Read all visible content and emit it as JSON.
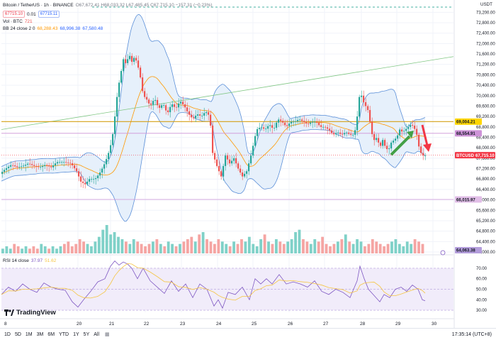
{
  "header": {
    "symbol": "Bitcoin / TetherUS · 1h · BINANCE",
    "ohlc": "O67,672.41 H68,033.32 L67,485.45 C67,715.10 −157.31 (−0.23%)",
    "sell_price": "67715.10",
    "spread": "0.01",
    "buy_price": "67715.11"
  },
  "indicators": {
    "vol_label": "Vol · BTC",
    "vol_value": "721",
    "bb_label": "BB 24 close 2 0",
    "bb_values": [
      "68,288.43",
      "68,996.38",
      "67,580.48"
    ],
    "rsi_label": "RSI 14 close",
    "rsi_values": [
      "37.97",
      "51.62"
    ]
  },
  "price_axis": {
    "currency": "USDT",
    "ticks": [
      "73,200.00",
      "72,800.00",
      "72,400.00",
      "72,000.00",
      "71,600.00",
      "71,200.00",
      "70,800.00",
      "70,400.00",
      "70,000.00",
      "69,600.00",
      "69,200.00",
      "68,800.00",
      "68,400.00",
      "68,000.00",
      "67,600.00",
      "67,200.00",
      "66,800.00",
      "66,400.00",
      "66,000.00",
      "65,600.00",
      "65,200.00",
      "64,800.00",
      "64,400.00",
      "64,000.00"
    ],
    "badges": {
      "level_high": "69,004.21",
      "level_mid": "68,554.91",
      "current_symbol": "BTCUSDT",
      "current_price": "67,715.10",
      "level_low": "66,015.97",
      "volume_level": "64,063.38"
    }
  },
  "rsi_axis": {
    "ticks": [
      "70.00",
      "60.00",
      "50.00",
      "40.00",
      "30.00"
    ]
  },
  "time_axis": {
    "ticks": [
      "8",
      "20",
      "21",
      "22",
      "23",
      "24",
      "25",
      "26",
      "27",
      "28",
      "29",
      "30"
    ]
  },
  "chart_data": {
    "type": "candlestick",
    "instrument": "BTCUSDT",
    "ylim": [
      64000,
      73400
    ],
    "horizontal_levels": [
      69004.21,
      68554.91,
      66015.97
    ],
    "current_price": 67715.1,
    "close_path": [
      [
        0,
        67000
      ],
      [
        8,
        67200
      ],
      [
        16,
        67350
      ],
      [
        24,
        67250
      ],
      [
        32,
        67300
      ],
      [
        40,
        67400
      ],
      [
        48,
        67300
      ],
      [
        56,
        67250
      ],
      [
        64,
        67350
      ],
      [
        72,
        67250
      ],
      [
        80,
        67450
      ],
      [
        90,
        67450
      ],
      [
        100,
        67400
      ],
      [
        108,
        67100
      ],
      [
        114,
        66700
      ],
      [
        120,
        66600
      ],
      [
        126,
        66800
      ],
      [
        134,
        66800
      ],
      [
        140,
        67000
      ],
      [
        146,
        67300
      ],
      [
        152,
        67700
      ],
      [
        158,
        68300
      ],
      [
        162,
        69200
      ],
      [
        166,
        70200
      ],
      [
        170,
        70800
      ],
      [
        174,
        71400
      ],
      [
        178,
        71200
      ],
      [
        182,
        71600
      ],
      [
        186,
        71300
      ],
      [
        190,
        71500
      ],
      [
        194,
        71200
      ],
      [
        198,
        70700
      ],
      [
        202,
        70000
      ],
      [
        206,
        69900
      ],
      [
        212,
        69600
      ],
      [
        218,
        69900
      ],
      [
        224,
        69500
      ],
      [
        230,
        69700
      ],
      [
        236,
        69300
      ],
      [
        242,
        69700
      ],
      [
        248,
        69500
      ],
      [
        254,
        69800
      ],
      [
        260,
        69600
      ],
      [
        266,
        69300
      ],
      [
        272,
        69100
      ],
      [
        278,
        69300
      ],
      [
        284,
        69200
      ],
      [
        290,
        69400
      ],
      [
        296,
        69200
      ],
      [
        300,
        67800
      ],
      [
        306,
        67300
      ],
      [
        312,
        66900
      ],
      [
        318,
        67700
      ],
      [
        324,
        67400
      ],
      [
        330,
        67600
      ],
      [
        336,
        67200
      ],
      [
        342,
        66900
      ],
      [
        348,
        67100
      ],
      [
        354,
        67700
      ],
      [
        358,
        68200
      ],
      [
        362,
        68700
      ],
      [
        368,
        68800
      ],
      [
        374,
        68700
      ],
      [
        380,
        68900
      ],
      [
        386,
        68700
      ],
      [
        392,
        69100
      ],
      [
        398,
        69000
      ],
      [
        404,
        68800
      ],
      [
        410,
        69000
      ],
      [
        416,
        69000
      ],
      [
        422,
        69100
      ],
      [
        428,
        69000
      ],
      [
        434,
        68900
      ],
      [
        440,
        69000
      ],
      [
        446,
        69000
      ],
      [
        452,
        68800
      ],
      [
        458,
        68800
      ],
      [
        464,
        68700
      ],
      [
        470,
        68500
      ],
      [
        476,
        68600
      ],
      [
        482,
        68500
      ],
      [
        488,
        68600
      ],
      [
        494,
        68500
      ],
      [
        500,
        68500
      ],
      [
        504,
        69200
      ],
      [
        508,
        70200
      ],
      [
        512,
        69800
      ],
      [
        516,
        69600
      ],
      [
        520,
        69400
      ],
      [
        524,
        68600
      ],
      [
        528,
        68300
      ],
      [
        532,
        68400
      ],
      [
        536,
        68000
      ],
      [
        540,
        68300
      ],
      [
        544,
        68000
      ],
      [
        548,
        67900
      ],
      [
        552,
        68200
      ],
      [
        556,
        68300
      ],
      [
        560,
        68400
      ],
      [
        564,
        68700
      ],
      [
        568,
        68600
      ],
      [
        572,
        68700
      ],
      [
        576,
        68800
      ],
      [
        580,
        68900
      ],
      [
        584,
        68800
      ],
      [
        588,
        68500
      ],
      [
        592,
        67900
      ],
      [
        596,
        67700
      ]
    ],
    "volume": [
      2,
      3,
      2,
      4,
      3,
      2,
      3,
      2,
      3,
      2,
      4,
      3,
      2,
      3,
      2,
      3,
      4,
      5,
      3,
      4,
      6,
      5,
      4,
      3,
      5,
      7,
      10,
      12,
      8,
      9,
      7,
      6,
      5,
      4,
      6,
      5,
      4,
      3,
      4,
      5,
      6,
      4,
      3,
      5,
      4,
      3,
      4,
      5,
      6,
      7,
      5,
      8,
      9,
      6,
      5,
      4,
      6,
      5,
      4,
      3,
      5,
      4,
      6,
      5,
      7,
      4,
      3,
      6,
      8,
      5,
      4,
      6,
      5,
      4,
      5,
      6,
      9,
      10,
      6,
      5,
      4,
      6,
      5,
      7,
      4,
      3,
      4,
      5,
      6,
      8,
      5,
      4,
      6,
      5,
      3,
      4,
      6,
      5,
      4,
      3,
      4,
      5,
      6,
      4,
      3,
      5,
      4,
      6,
      5,
      4
    ],
    "rsi_path": [
      [
        0,
        45
      ],
      [
        10,
        52
      ],
      [
        20,
        48
      ],
      [
        30,
        55
      ],
      [
        40,
        50
      ],
      [
        50,
        47
      ],
      [
        60,
        56
      ],
      [
        70,
        52
      ],
      [
        80,
        50
      ],
      [
        90,
        49
      ],
      [
        100,
        38
      ],
      [
        108,
        33
      ],
      [
        116,
        40
      ],
      [
        126,
        48
      ],
      [
        136,
        57
      ],
      [
        146,
        60
      ],
      [
        154,
        72
      ],
      [
        160,
        77
      ],
      [
        166,
        73
      ],
      [
        172,
        76
      ],
      [
        178,
        74
      ],
      [
        184,
        70
      ],
      [
        192,
        60
      ],
      [
        200,
        70
      ],
      [
        210,
        58
      ],
      [
        220,
        52
      ],
      [
        230,
        46
      ],
      [
        240,
        58
      ],
      [
        250,
        48
      ],
      [
        260,
        55
      ],
      [
        270,
        42
      ],
      [
        280,
        55
      ],
      [
        290,
        50
      ],
      [
        300,
        34
      ],
      [
        306,
        40
      ],
      [
        312,
        32
      ],
      [
        320,
        47
      ],
      [
        330,
        45
      ],
      [
        340,
        52
      ],
      [
        350,
        40
      ],
      [
        358,
        60
      ],
      [
        366,
        55
      ],
      [
        374,
        60
      ],
      [
        382,
        55
      ],
      [
        392,
        64
      ],
      [
        402,
        55
      ],
      [
        412,
        57
      ],
      [
        422,
        55
      ],
      [
        432,
        52
      ],
      [
        442,
        58
      ],
      [
        452,
        48
      ],
      [
        462,
        45
      ],
      [
        472,
        50
      ],
      [
        482,
        47
      ],
      [
        492,
        42
      ],
      [
        502,
        58
      ],
      [
        506,
        72
      ],
      [
        512,
        60
      ],
      [
        518,
        50
      ],
      [
        526,
        44
      ],
      [
        534,
        38
      ],
      [
        540,
        45
      ],
      [
        548,
        42
      ],
      [
        556,
        50
      ],
      [
        564,
        52
      ],
      [
        572,
        48
      ],
      [
        580,
        54
      ],
      [
        588,
        50
      ],
      [
        594,
        40
      ],
      [
        598,
        39
      ]
    ],
    "rsi_ylim": [
      28,
      74
    ]
  },
  "bottom_bar": {
    "timeframes": [
      "1D",
      "5D",
      "1M",
      "3M",
      "6M",
      "YTD",
      "1Y",
      "5Y",
      "All"
    ],
    "clock": "17:35:14 (UTC+8)"
  },
  "branding": {
    "logo_text": "TradingView"
  },
  "colors": {
    "up": "#26a69a",
    "down": "#ef5350",
    "bb_fill": "#e6f0fb",
    "bb_band": "#5b8fd8",
    "bb_basis": "#ff9800",
    "level": "#d4a017",
    "rsi": "#7e57c2",
    "rsi_bg": "#f1ecfa"
  }
}
